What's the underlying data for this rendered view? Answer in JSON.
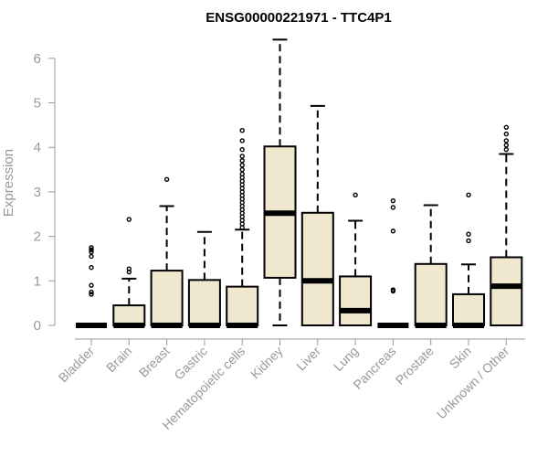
{
  "chart_data": {
    "type": "boxplot",
    "title": "ENSG00000221971 - TTC4P1",
    "xlabel": "",
    "ylabel": "Expression",
    "ylim": [
      0,
      6.5
    ],
    "yticks": [
      0,
      1,
      2,
      3,
      4,
      5,
      6
    ],
    "box_fill": "#efe8cf",
    "box_stroke": "#000000",
    "categories": [
      "Bladder",
      "Brain",
      "Breast",
      "Gastric",
      "Hematopoietic cells",
      "Kidney",
      "Liver",
      "Lung",
      "Pancreas",
      "Prostate",
      "Skin",
      "Unknown / Other"
    ],
    "boxes": [
      {
        "name": "Bladder",
        "min": 0,
        "q1": 0,
        "median": 0,
        "q3": 0,
        "max": 0,
        "outliers": [
          0.7,
          0.75,
          0.9,
          1.3,
          1.55,
          1.65,
          1.7,
          1.75
        ]
      },
      {
        "name": "Brain",
        "min": 0,
        "q1": 0,
        "median": 0,
        "q3": 0.45,
        "max": 1.05,
        "outliers": [
          1.2,
          1.27,
          2.38
        ]
      },
      {
        "name": "Breast",
        "min": 0,
        "q1": 0,
        "median": 0,
        "q3": 1.23,
        "max": 2.68,
        "outliers": [
          3.28
        ]
      },
      {
        "name": "Gastric",
        "min": 0,
        "q1": 0,
        "median": 0,
        "q3": 1.02,
        "max": 2.1,
        "outliers": []
      },
      {
        "name": "Hematopoietic cells",
        "min": 0,
        "q1": 0,
        "median": 0,
        "q3": 0.87,
        "max": 2.15,
        "outliers": [
          2.2,
          2.28,
          2.36,
          2.44,
          2.52,
          2.6,
          2.68,
          2.76,
          2.84,
          2.92,
          3.0,
          3.08,
          3.16,
          3.24,
          3.32,
          3.4,
          3.5,
          3.6,
          3.7,
          3.8,
          3.95,
          4.15,
          4.38
        ]
      },
      {
        "name": "Kidney",
        "min": 0,
        "q1": 1.07,
        "median": 2.52,
        "q3": 4.02,
        "max": 6.42,
        "outliers": []
      },
      {
        "name": "Liver",
        "min": 0,
        "q1": 0,
        "median": 1.0,
        "q3": 2.53,
        "max": 4.93,
        "outliers": []
      },
      {
        "name": "Lung",
        "min": 0,
        "q1": 0,
        "median": 0.33,
        "q3": 1.1,
        "max": 2.35,
        "outliers": [
          2.93
        ]
      },
      {
        "name": "Pancreas",
        "min": 0,
        "q1": 0,
        "median": 0,
        "q3": 0,
        "max": 0,
        "outliers": [
          0.77,
          0.8,
          2.12,
          2.65,
          2.8
        ]
      },
      {
        "name": "Prostate",
        "min": 0,
        "q1": 0,
        "median": 0,
        "q3": 1.38,
        "max": 2.7,
        "outliers": []
      },
      {
        "name": "Skin",
        "min": 0,
        "q1": 0,
        "median": 0,
        "q3": 0.7,
        "max": 1.37,
        "outliers": [
          1.9,
          2.05,
          2.93
        ]
      },
      {
        "name": "Unknown / Other",
        "min": 0,
        "q1": 0,
        "median": 0.88,
        "q3": 1.53,
        "max": 3.85,
        "outliers": [
          3.95,
          4.05,
          4.15,
          4.3,
          4.45
        ]
      }
    ]
  }
}
